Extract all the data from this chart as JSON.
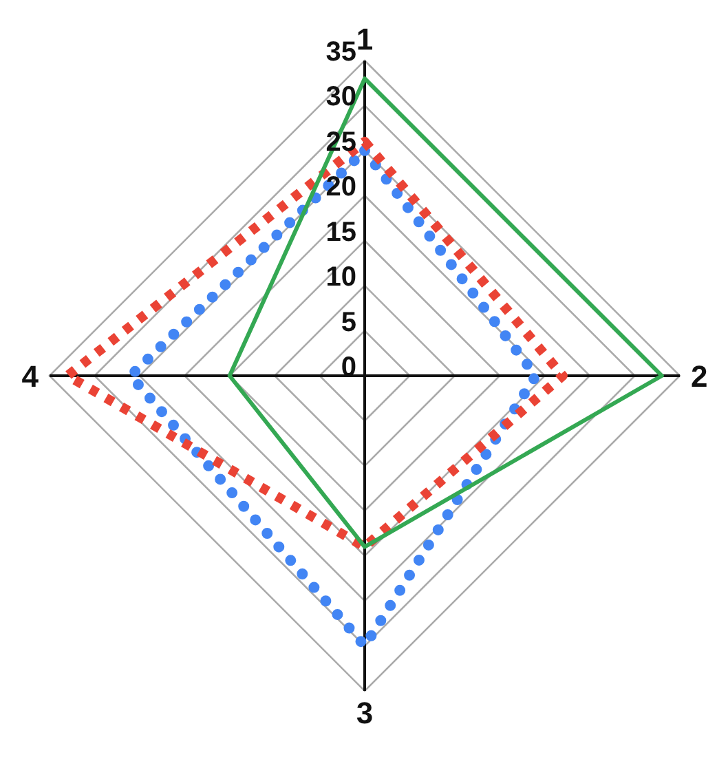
{
  "chart_data": {
    "type": "radar",
    "categories": [
      "1",
      "2",
      "3",
      "4"
    ],
    "series": [
      {
        "color": "#4285f4",
        "values": [
          25,
          19,
          30,
          26
        ],
        "line_style": "dotted"
      },
      {
        "color": "#ea4335",
        "values": [
          26,
          22,
          19,
          33
        ],
        "line_style": "dashed"
      },
      {
        "color": "#34a853",
        "values": [
          33,
          33,
          19,
          15
        ],
        "line_style": "solid"
      }
    ],
    "ylim": [
      0,
      35
    ],
    "yticks": [
      0,
      5,
      10,
      15,
      20,
      25,
      30,
      35
    ],
    "grid": true
  }
}
